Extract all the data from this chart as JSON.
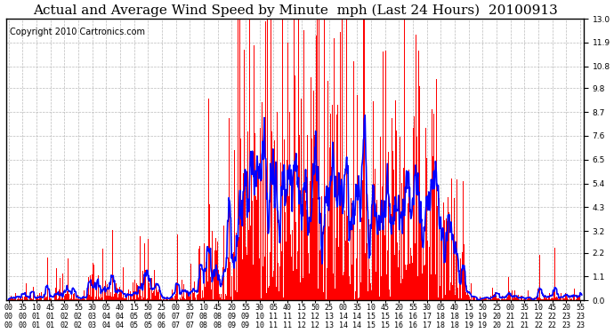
{
  "title": "Actual and Average Wind Speed by Minute  mph (Last 24 Hours)  20100913",
  "copyright": "Copyright 2010 Cartronics.com",
  "yticks": [
    0.0,
    1.1,
    2.2,
    3.2,
    4.3,
    5.4,
    6.5,
    7.6,
    8.7,
    9.8,
    10.8,
    11.9,
    13.0
  ],
  "ylim": [
    0.0,
    13.0
  ],
  "bar_color": "#FF0000",
  "line_color": "#0000FF",
  "bg_color": "#FFFFFF",
  "grid_color": "#AAAAAA",
  "title_fontsize": 11,
  "copyright_fontsize": 7,
  "tick_fontsize": 6.5
}
